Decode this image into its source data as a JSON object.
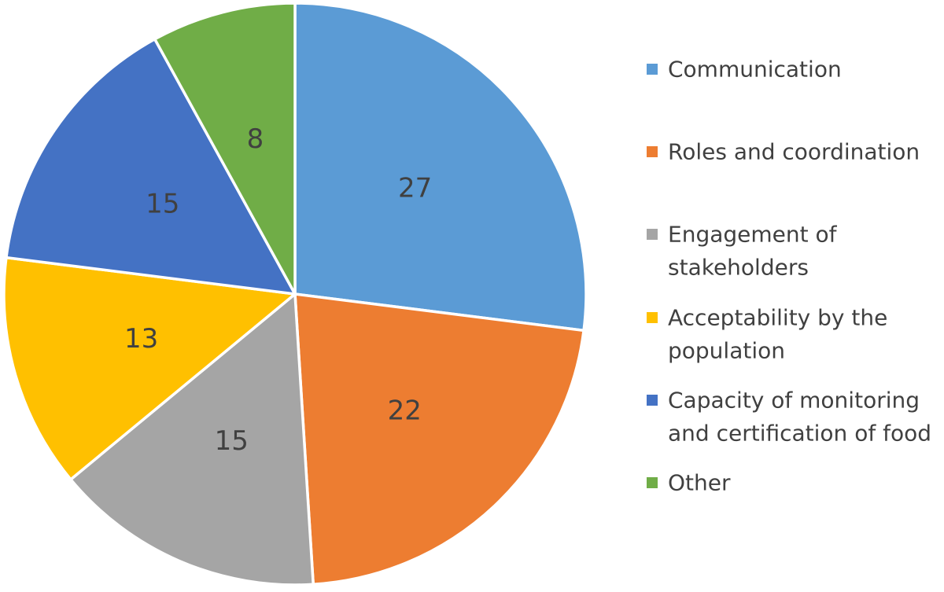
{
  "chart_data": {
    "type": "pie",
    "title": "",
    "start_angle_deg": 0,
    "direction": "clockwise",
    "data_labels_shown": true,
    "legend_position": "right",
    "slices": [
      {
        "label": "Communication",
        "value": 27,
        "color": "#5B9BD5"
      },
      {
        "label": "Roles and coordination",
        "value": 22,
        "color": "#ED7D31"
      },
      {
        "label": "Engagement of stakeholders",
        "value": 15,
        "color": "#A5A5A5"
      },
      {
        "label": "Acceptability by the population",
        "value": 13,
        "color": "#FFC000"
      },
      {
        "label": "Capacity of monitoring and certification of food",
        "value": 15,
        "color": "#4472C4"
      },
      {
        "label": "Other",
        "value": 8,
        "color": "#70AD47"
      }
    ]
  }
}
